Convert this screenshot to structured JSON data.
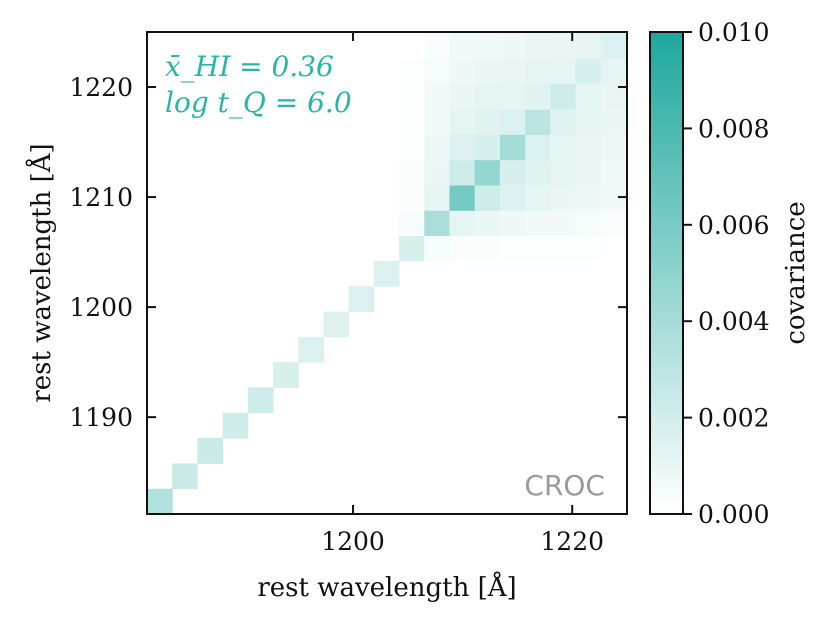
{
  "chart_data": {
    "type": "heatmap",
    "title": "",
    "xlabel": "rest wavelength [Å]",
    "ylabel": "rest wavelength [Å]",
    "xlim": [
      1181.2,
      1225.0
    ],
    "ylim": [
      1181.2,
      1225.0
    ],
    "xticks": [
      1200,
      1220
    ],
    "yticks": [
      1190,
      1200,
      1210,
      1220
    ],
    "cell_size_angstrom": 2.3,
    "n_cells": 19,
    "annotation_lines": [
      "x̄_HI = 0.36",
      "log t_Q = 6.0"
    ],
    "watermark": "CROC",
    "colorbar": {
      "label": "covariance",
      "min": 0.0,
      "max": 0.01,
      "ticks": [
        "0.000",
        "0.002",
        "0.004",
        "0.006",
        "0.008",
        "0.010"
      ],
      "colors": [
        "#ffffff",
        "#1ea89c"
      ]
    },
    "values": [
      [
        0.0035,
        0,
        0,
        0,
        0,
        0,
        0,
        0,
        0,
        0,
        0,
        0,
        0,
        0,
        0,
        0,
        0,
        0,
        0
      ],
      [
        0,
        0.0024,
        0,
        0,
        0,
        0,
        0,
        0,
        0,
        0,
        0,
        0,
        0,
        0,
        0,
        0,
        0,
        0,
        0
      ],
      [
        0,
        0,
        0.0024,
        0,
        0,
        0,
        0,
        0,
        0,
        0,
        0,
        0,
        0,
        0,
        0,
        0,
        0,
        0,
        0
      ],
      [
        0,
        0,
        0,
        0.0022,
        0,
        0,
        0,
        0,
        0,
        0,
        0,
        0,
        0,
        0,
        0,
        0,
        0,
        0,
        0
      ],
      [
        0,
        0,
        0,
        0,
        0.0022,
        0,
        0,
        0,
        0,
        0,
        0,
        0,
        0,
        0,
        0,
        0,
        0,
        0,
        0
      ],
      [
        0,
        0,
        0,
        0,
        0,
        0.0018,
        0,
        0,
        0,
        0,
        0,
        0,
        0,
        0,
        0,
        0,
        0,
        0,
        0
      ],
      [
        0,
        0,
        0,
        0,
        0,
        0,
        0.0016,
        0,
        0,
        0,
        0,
        0,
        0,
        0,
        0,
        0,
        0,
        0,
        0
      ],
      [
        0,
        0,
        0,
        0,
        0,
        0,
        0,
        0.0015,
        0,
        0,
        0,
        0,
        0,
        0,
        0,
        0,
        0,
        0,
        0
      ],
      [
        0,
        0,
        0,
        0,
        0,
        0,
        0,
        0,
        0.0016,
        0,
        0,
        0,
        0,
        0,
        0,
        0,
        0,
        0,
        0
      ],
      [
        0,
        0,
        0,
        0,
        0,
        0,
        0,
        0,
        0,
        0.0016,
        0,
        0,
        0,
        0,
        0,
        0,
        0,
        0,
        0
      ],
      [
        0,
        0,
        0,
        0,
        0,
        0,
        0,
        0,
        0,
        0,
        0.0018,
        0.0004,
        0.0002,
        0.0002,
        0.0001,
        0.0001,
        0.0001,
        0.0001,
        0
      ],
      [
        0,
        0,
        0,
        0,
        0,
        0,
        0,
        0,
        0,
        0,
        0.0004,
        0.0038,
        0.0012,
        0.0009,
        0.0008,
        0.0006,
        0.0006,
        0.0005,
        0.0003
      ],
      [
        0,
        0,
        0,
        0,
        0,
        0,
        0,
        0,
        0,
        0,
        0.0002,
        0.0012,
        0.0062,
        0.0022,
        0.0015,
        0.0012,
        0.0009,
        0.0008,
        0.0006
      ],
      [
        0,
        0,
        0,
        0,
        0,
        0,
        0,
        0,
        0,
        0,
        0.0002,
        0.0009,
        0.0022,
        0.0048,
        0.0018,
        0.0014,
        0.0011,
        0.0009,
        0.0007
      ],
      [
        0,
        0,
        0,
        0,
        0,
        0,
        0,
        0,
        0,
        0,
        0.0001,
        0.0008,
        0.0015,
        0.0018,
        0.004,
        0.0016,
        0.0012,
        0.001,
        0.0008
      ],
      [
        0,
        0,
        0,
        0,
        0,
        0,
        0,
        0,
        0,
        0,
        0.0001,
        0.0006,
        0.0012,
        0.0014,
        0.0016,
        0.003,
        0.0014,
        0.0011,
        0.0009
      ],
      [
        0,
        0,
        0,
        0,
        0,
        0,
        0,
        0,
        0,
        0,
        0.0001,
        0.0006,
        0.0009,
        0.0011,
        0.0012,
        0.0014,
        0.0022,
        0.0012,
        0.001
      ],
      [
        0,
        0,
        0,
        0,
        0,
        0,
        0,
        0,
        0,
        0,
        0.0001,
        0.0005,
        0.0008,
        0.0009,
        0.001,
        0.0011,
        0.0012,
        0.0018,
        0.0011
      ],
      [
        0,
        0,
        0,
        0,
        0,
        0,
        0,
        0,
        0,
        0,
        0,
        0.0003,
        0.0006,
        0.0007,
        0.0008,
        0.0009,
        0.001,
        0.0011,
        0.0016
      ]
    ]
  }
}
